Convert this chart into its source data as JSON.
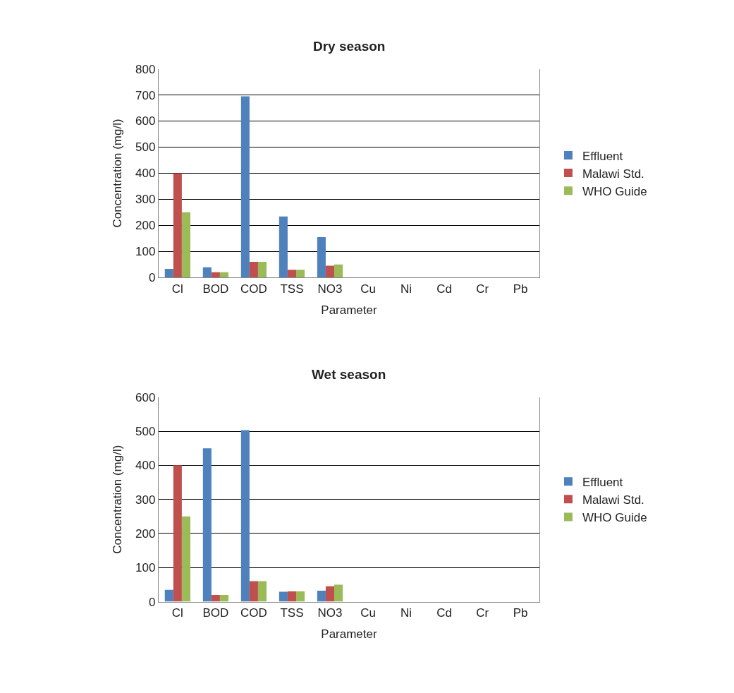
{
  "chart_data": [
    {
      "type": "bar",
      "title": "Dry season",
      "xlabel": "Parameter",
      "ylabel": "Concentration (mg/l)",
      "categories": [
        "Cl",
        "BOD",
        "COD",
        "TSS",
        "NO3",
        "Cu",
        "Ni",
        "Cd",
        "Cr",
        "Pb"
      ],
      "series": [
        {
          "name": "Effluent",
          "color": "#4f81bd",
          "values": [
            33,
            39,
            695,
            234,
            155,
            0,
            0,
            0,
            0,
            0
          ]
        },
        {
          "name": "Malawi Std.",
          "color": "#c0504d",
          "values": [
            400,
            20,
            60,
            30,
            45,
            0,
            0,
            0,
            0,
            0
          ]
        },
        {
          "name": "WHO Guide",
          "color": "#9bbb59",
          "values": [
            250,
            20,
            60,
            30,
            50,
            0,
            0,
            0,
            0,
            0
          ]
        }
      ],
      "ylim": [
        0,
        800
      ],
      "yticks": [
        0,
        100,
        200,
        300,
        400,
        500,
        600,
        700,
        800
      ],
      "grid": "y",
      "legend": "right"
    },
    {
      "type": "bar",
      "title": "Wet season",
      "xlabel": "Parameter",
      "ylabel": "Concentration (mg/l)",
      "categories": [
        "Cl",
        "BOD",
        "COD",
        "TSS",
        "NO3",
        "Cu",
        "Ni",
        "Cd",
        "Cr",
        "Pb"
      ],
      "series": [
        {
          "name": "Effluent",
          "color": "#4f81bd",
          "values": [
            35,
            450,
            503,
            29,
            32,
            0,
            0,
            0,
            0,
            0
          ]
        },
        {
          "name": "Malawi Std.",
          "color": "#c0504d",
          "values": [
            400,
            20,
            60,
            30,
            45,
            0,
            0,
            0,
            0,
            0
          ]
        },
        {
          "name": "WHO Guide",
          "color": "#9bbb59",
          "values": [
            250,
            20,
            60,
            30,
            50,
            0,
            0,
            0,
            0,
            0
          ]
        }
      ],
      "ylim": [
        0,
        600
      ],
      "yticks": [
        0,
        100,
        200,
        300,
        400,
        500,
        600
      ],
      "grid": "y",
      "legend": "right"
    }
  ]
}
